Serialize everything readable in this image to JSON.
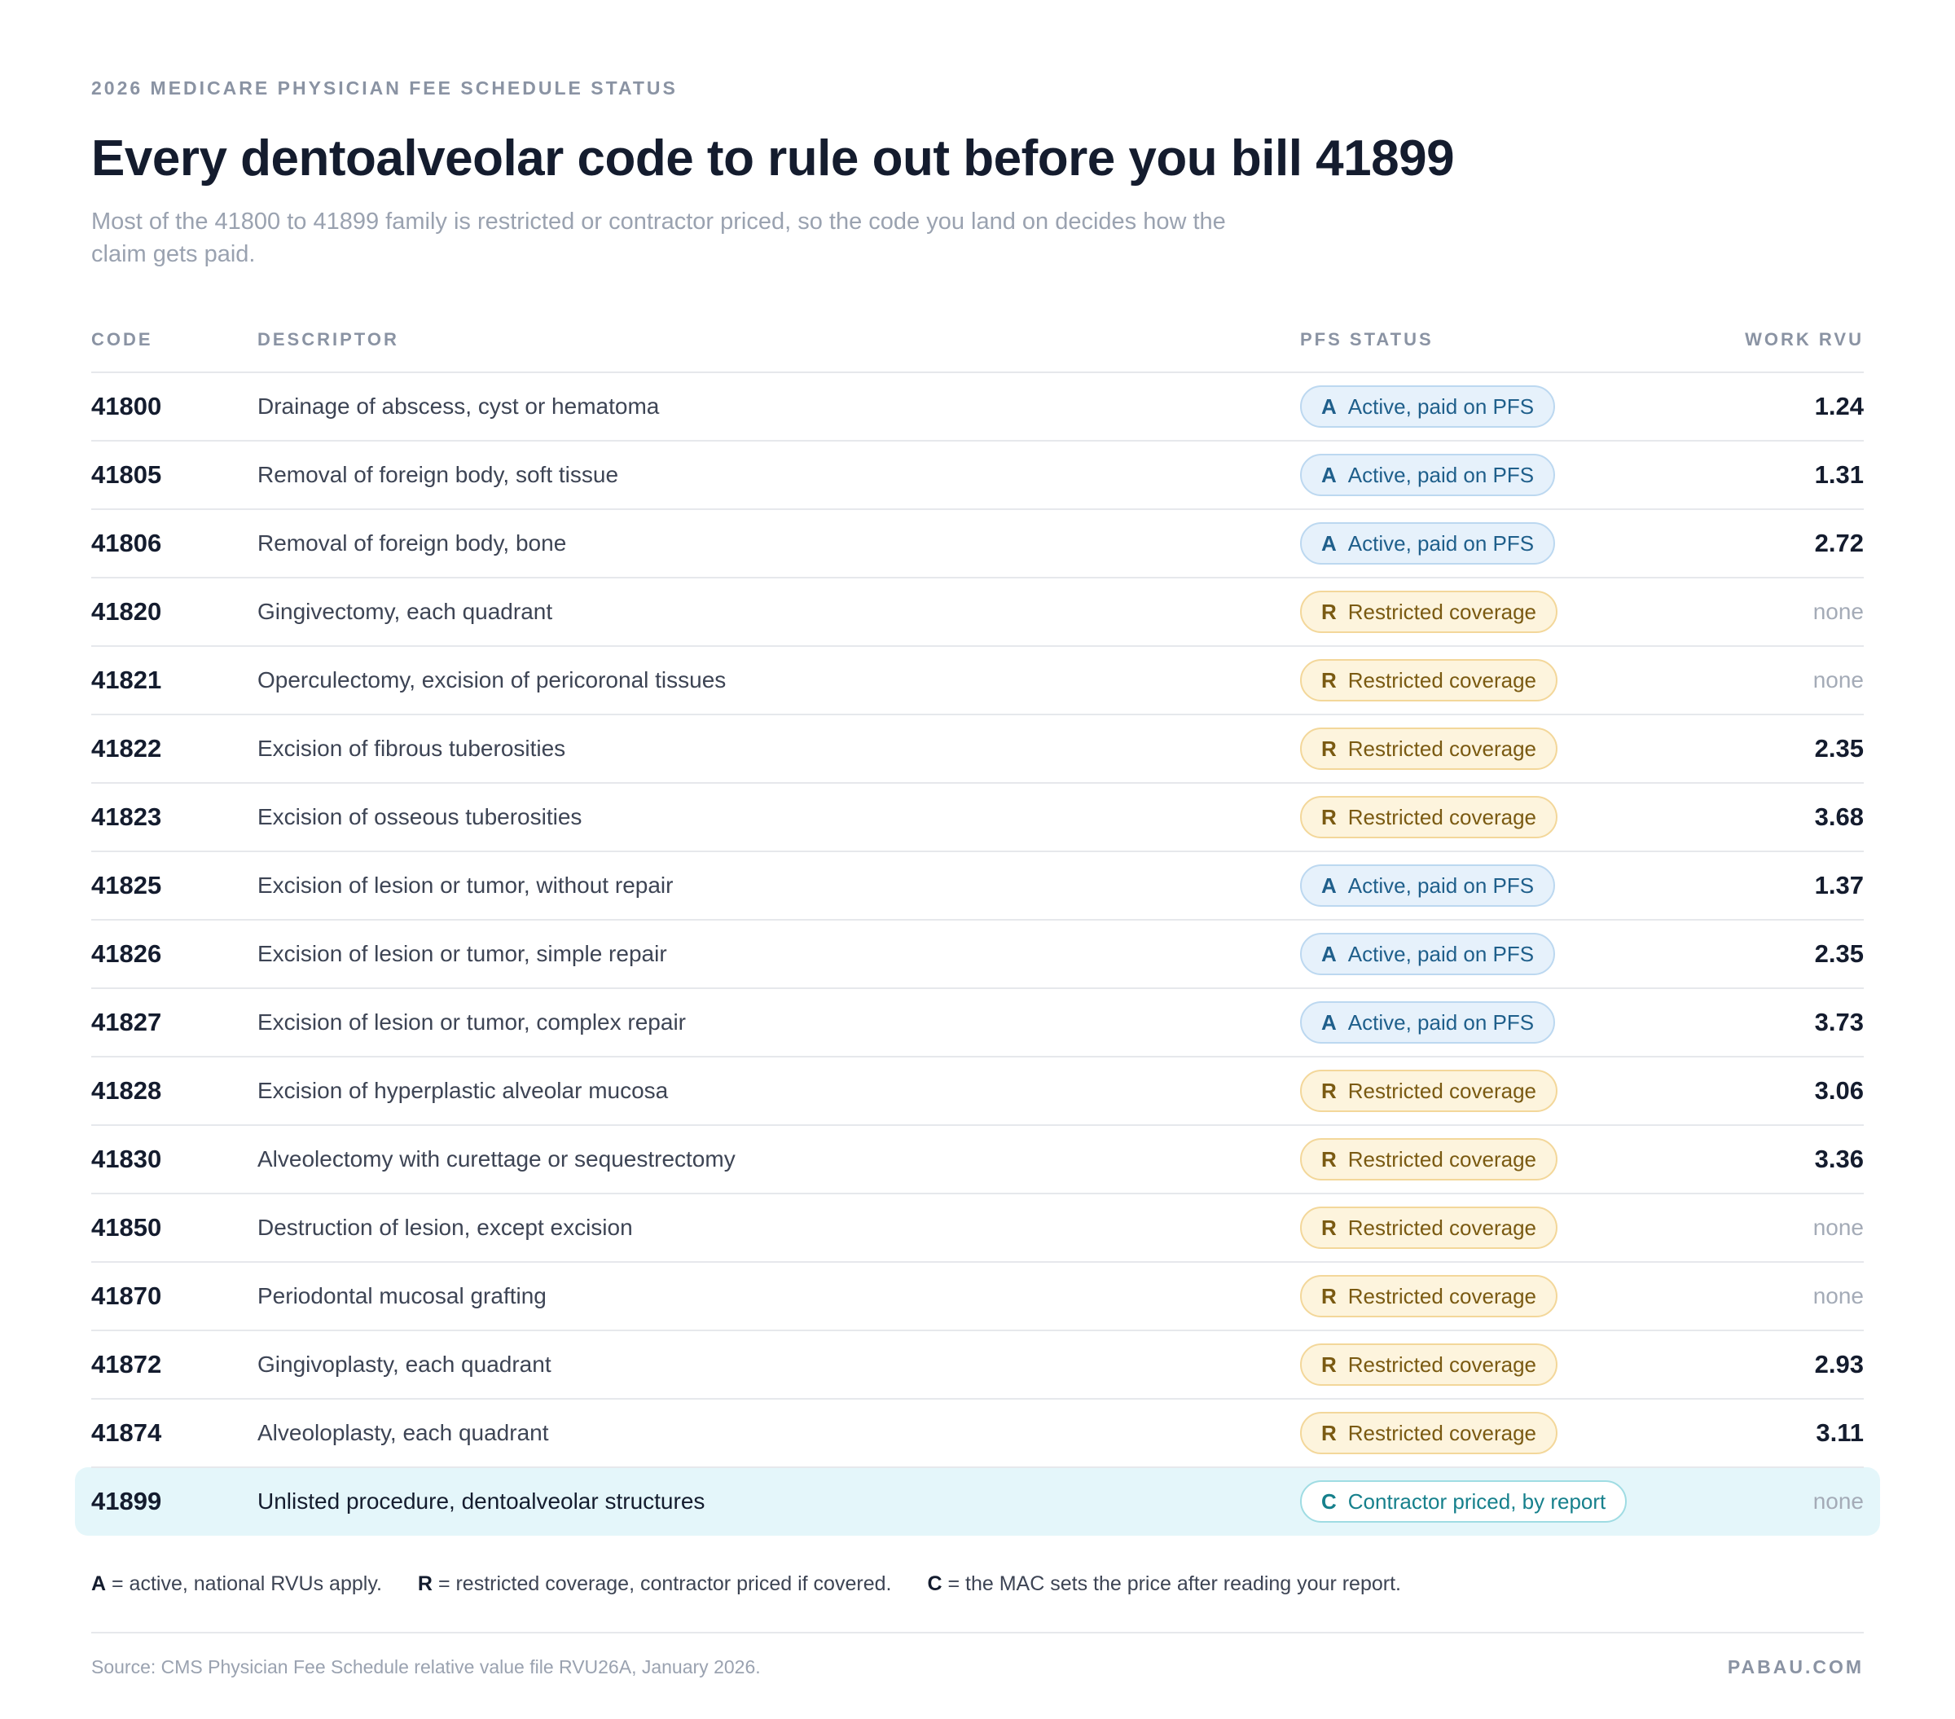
{
  "eyebrow": "2026 MEDICARE PHYSICIAN FEE SCHEDULE STATUS",
  "title": "Every dentoalveolar code to rule out before you bill 41899",
  "subtitle": "Most of the 41800 to 41899 family is restricted or contractor priced, so the code you land on decides how the claim gets paid.",
  "columns": {
    "code": "CODE",
    "descriptor": "DESCRIPTOR",
    "status": "PFS STATUS",
    "rvu": "WORK RVU"
  },
  "rows": [
    {
      "code": "41800",
      "descriptor": "Drainage of abscess, cyst or hematoma",
      "status_letter": "A",
      "status_label": "Active, paid on PFS",
      "rvu": "1.24"
    },
    {
      "code": "41805",
      "descriptor": "Removal of foreign body, soft tissue",
      "status_letter": "A",
      "status_label": "Active, paid on PFS",
      "rvu": "1.31"
    },
    {
      "code": "41806",
      "descriptor": "Removal of foreign body, bone",
      "status_letter": "A",
      "status_label": "Active, paid on PFS",
      "rvu": "2.72"
    },
    {
      "code": "41820",
      "descriptor": "Gingivectomy, each quadrant",
      "status_letter": "R",
      "status_label": "Restricted coverage",
      "rvu": "none"
    },
    {
      "code": "41821",
      "descriptor": "Operculectomy, excision of pericoronal tissues",
      "status_letter": "R",
      "status_label": "Restricted coverage",
      "rvu": "none"
    },
    {
      "code": "41822",
      "descriptor": "Excision of fibrous tuberosities",
      "status_letter": "R",
      "status_label": "Restricted coverage",
      "rvu": "2.35"
    },
    {
      "code": "41823",
      "descriptor": "Excision of osseous tuberosities",
      "status_letter": "R",
      "status_label": "Restricted coverage",
      "rvu": "3.68"
    },
    {
      "code": "41825",
      "descriptor": "Excision of lesion or tumor, without repair",
      "status_letter": "A",
      "status_label": "Active, paid on PFS",
      "rvu": "1.37"
    },
    {
      "code": "41826",
      "descriptor": "Excision of lesion or tumor, simple repair",
      "status_letter": "A",
      "status_label": "Active, paid on PFS",
      "rvu": "2.35"
    },
    {
      "code": "41827",
      "descriptor": "Excision of lesion or tumor, complex repair",
      "status_letter": "A",
      "status_label": "Active, paid on PFS",
      "rvu": "3.73"
    },
    {
      "code": "41828",
      "descriptor": "Excision of hyperplastic alveolar mucosa",
      "status_letter": "R",
      "status_label": "Restricted coverage",
      "rvu": "3.06"
    },
    {
      "code": "41830",
      "descriptor": "Alveolectomy with curettage or sequestrectomy",
      "status_letter": "R",
      "status_label": "Restricted coverage",
      "rvu": "3.36"
    },
    {
      "code": "41850",
      "descriptor": "Destruction of lesion, except excision",
      "status_letter": "R",
      "status_label": "Restricted coverage",
      "rvu": "none"
    },
    {
      "code": "41870",
      "descriptor": "Periodontal mucosal grafting",
      "status_letter": "R",
      "status_label": "Restricted coverage",
      "rvu": "none"
    },
    {
      "code": "41872",
      "descriptor": "Gingivoplasty, each quadrant",
      "status_letter": "R",
      "status_label": "Restricted coverage",
      "rvu": "2.93"
    },
    {
      "code": "41874",
      "descriptor": "Alveoloplasty, each quadrant",
      "status_letter": "R",
      "status_label": "Restricted coverage",
      "rvu": "3.11"
    },
    {
      "code": "41899",
      "descriptor": "Unlisted procedure, dentoalveolar structures",
      "status_letter": "C",
      "status_label": "Contractor priced, by report",
      "rvu": "none",
      "highlighted": true
    }
  ],
  "legend": [
    {
      "key": "A",
      "text": "= active, national RVUs apply."
    },
    {
      "key": "R",
      "text": "= restricted coverage, contractor priced if covered."
    },
    {
      "key": "C",
      "text": "= the MAC sets the price after reading your report."
    }
  ],
  "source": "Source: CMS Physician Fee Schedule relative value file RVU26A, January 2026.",
  "brand": "PABAU.COM",
  "colors": {
    "active_bg": "#e6f1fb",
    "active_text": "#1f5f8b",
    "restricted_bg": "#fdf4dd",
    "restricted_text": "#7a5a12",
    "contractor_text": "#16808c",
    "highlight_bg": "#e4f6fa"
  }
}
